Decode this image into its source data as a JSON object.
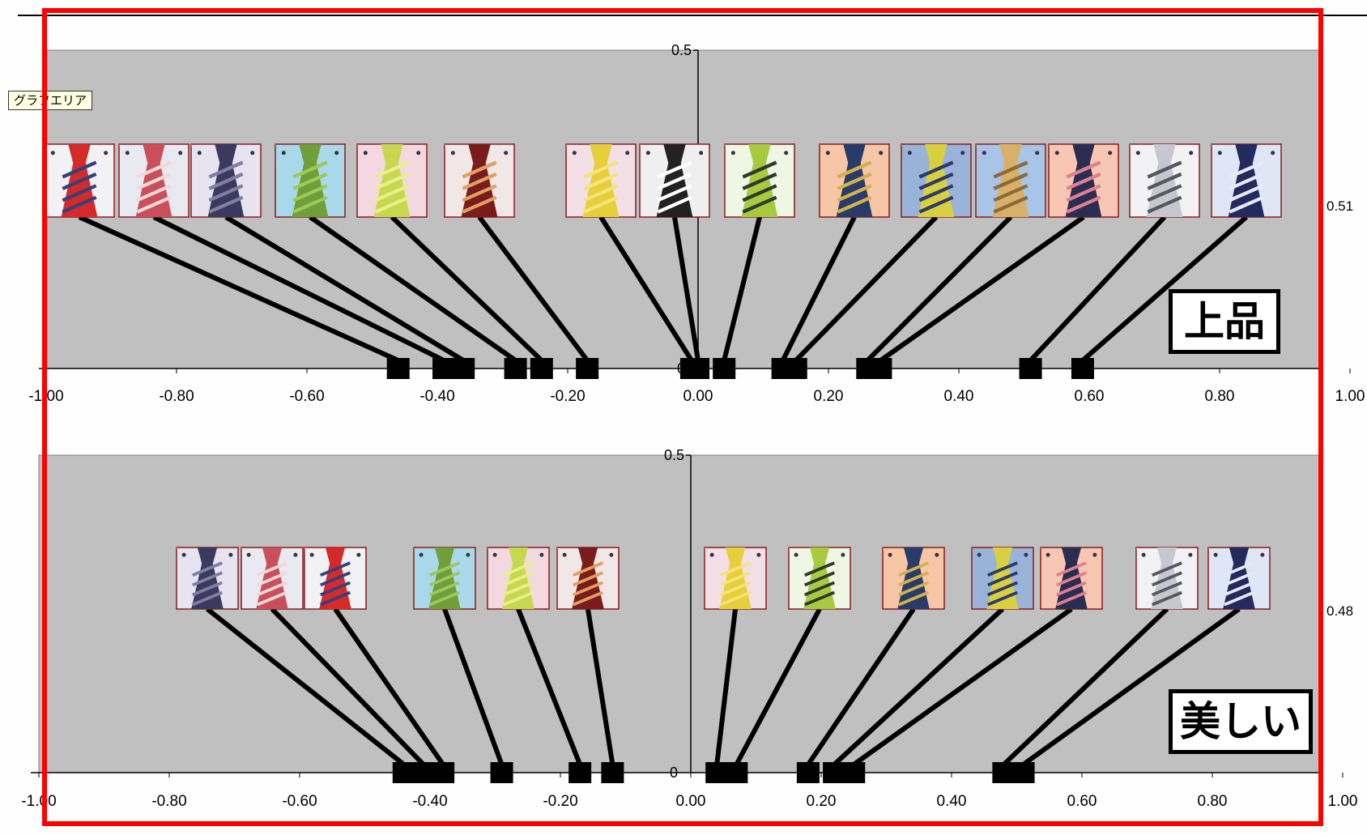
{
  "tooltip": "グラフエリア",
  "charts": [
    {
      "label": "上品",
      "right_value": "0.51",
      "y_tick_top": "0.5",
      "y_tick_zero": "0"
    },
    {
      "label": "美しい",
      "right_value": "0.48",
      "y_tick_top": "0.5",
      "y_tick_zero": "0"
    }
  ],
  "tie_swatches": {
    "red_stripe": [
      "#d42a2a",
      "#3a3f7a",
      "#f2f2f5"
    ],
    "pink_dot": [
      "#c9505a",
      "#f0d8d8",
      "#e9e9f2"
    ],
    "navy_diamond": [
      "#3b3a5e",
      "#7f7fa3",
      "#e7e4f0"
    ],
    "green_small": [
      "#6f9e3a",
      "#9cc95a",
      "#a9d9ea"
    ],
    "lime_dot": [
      "#c7d84e",
      "#e8f08a",
      "#f3d9df"
    ],
    "maroon_stripe": [
      "#7b1c1c",
      "#e0a060",
      "#f2e7e7"
    ],
    "yellow_solid": [
      "#e7cf3c",
      "#f4e47a",
      "#f3dfe6"
    ],
    "houndstooth": [
      "#222222",
      "#ffffff",
      "#efefef"
    ],
    "lime_stripe": [
      "#a9c940",
      "#2e3a2a",
      "#eef6e4"
    ],
    "navy_gold_stripe": [
      "#283c6a",
      "#d6b14a",
      "#f6c6a6"
    ],
    "yellow_navy_stripe": [
      "#d8d041",
      "#2e3a6a",
      "#9ab3d8"
    ],
    "tan_stripe": [
      "#d8b06a",
      "#8a6a3a",
      "#a8c4e6"
    ],
    "navy_pink_stripe": [
      "#2a2d52",
      "#e07f8f",
      "#f8c7b4"
    ],
    "silver_stripe": [
      "#c7c7cf",
      "#55585f",
      "#f2f2f6"
    ],
    "navy_white_stripe": [
      "#232a5e",
      "#e7e9f5",
      "#dfe6f5"
    ]
  },
  "chart_data": [
    {
      "type": "scatter",
      "title": "上品",
      "xlabel": "",
      "ylabel": "",
      "xlim": [
        -1.0,
        1.0
      ],
      "ylim": [
        0,
        0.5
      ],
      "x_ticks": [
        "-1.00",
        "-0.80",
        "-0.60",
        "-0.40",
        "-0.20",
        "0.00",
        "0.20",
        "0.40",
        "0.60",
        "0.80",
        "1.00"
      ],
      "y_ticks": [
        "0",
        "0.5"
      ],
      "right_label": "0.51",
      "points": [
        {
          "x": -0.46,
          "y": 0,
          "tie": "red_stripe"
        },
        {
          "x": -0.39,
          "y": 0,
          "tie": "pink_dot"
        },
        {
          "x": -0.36,
          "y": 0,
          "tie": "navy_diamond"
        },
        {
          "x": -0.28,
          "y": 0,
          "tie": "green_small"
        },
        {
          "x": -0.24,
          "y": 0,
          "tie": "lime_dot"
        },
        {
          "x": -0.17,
          "y": 0,
          "tie": "maroon_stripe"
        },
        {
          "x": -0.01,
          "y": 0,
          "tie": "yellow_solid"
        },
        {
          "x": 0.0,
          "y": 0,
          "tie": "houndstooth"
        },
        {
          "x": 0.04,
          "y": 0,
          "tie": "lime_stripe"
        },
        {
          "x": 0.13,
          "y": 0,
          "tie": "navy_gold_stripe"
        },
        {
          "x": 0.15,
          "y": 0,
          "tie": "yellow_navy_stripe"
        },
        {
          "x": 0.26,
          "y": 0,
          "tie": "tan_stripe"
        },
        {
          "x": 0.28,
          "y": 0,
          "tie": "navy_pink_stripe"
        },
        {
          "x": 0.51,
          "y": 0,
          "tie": "silver_stripe"
        },
        {
          "x": 0.59,
          "y": 0,
          "tie": "navy_white_stripe"
        }
      ]
    },
    {
      "type": "scatter",
      "title": "美しい",
      "xlabel": "",
      "ylabel": "",
      "xlim": [
        -1.0,
        1.0
      ],
      "ylim": [
        0,
        0.5
      ],
      "x_ticks": [
        "-1.00",
        "-0.80",
        "-0.60",
        "-0.40",
        "-0.20",
        "0.00",
        "0.20",
        "0.40",
        "0.60",
        "0.80",
        "1.00"
      ],
      "y_ticks": [
        "0",
        "0.5"
      ],
      "right_label": "0.48",
      "points": [
        {
          "x": -0.44,
          "y": 0,
          "tie": "navy_diamond"
        },
        {
          "x": -0.41,
          "y": 0,
          "tie": "pink_dot"
        },
        {
          "x": -0.38,
          "y": 0,
          "tie": "red_stripe"
        },
        {
          "x": -0.29,
          "y": 0,
          "tie": "green_small"
        },
        {
          "x": -0.17,
          "y": 0,
          "tie": "lime_dot"
        },
        {
          "x": -0.12,
          "y": 0,
          "tie": "maroon_stripe"
        },
        {
          "x": 0.04,
          "y": 0,
          "tie": "yellow_solid"
        },
        {
          "x": 0.07,
          "y": 0,
          "tie": "lime_stripe"
        },
        {
          "x": 0.18,
          "y": 0,
          "tie": "navy_gold_stripe"
        },
        {
          "x": 0.22,
          "y": 0,
          "tie": "yellow_navy_stripe"
        },
        {
          "x": 0.25,
          "y": 0,
          "tie": "navy_pink_stripe"
        },
        {
          "x": 0.48,
          "y": 0,
          "tie": "silver_stripe"
        },
        {
          "x": 0.51,
          "y": 0,
          "tie": "navy_white_stripe"
        }
      ]
    }
  ]
}
